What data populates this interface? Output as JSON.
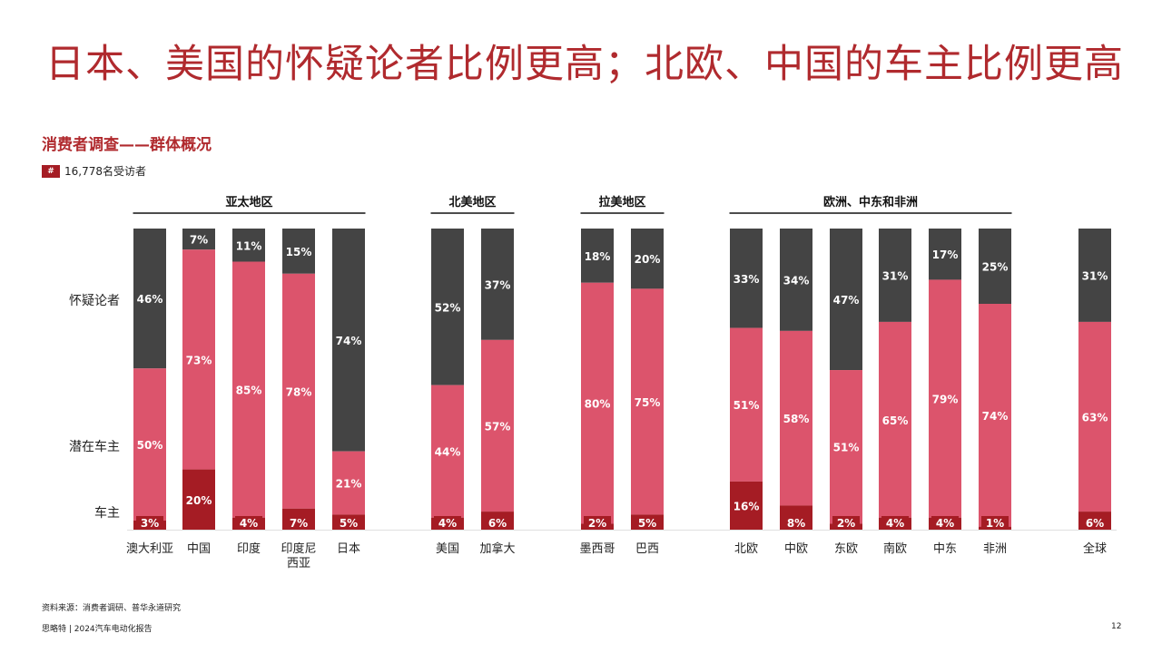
{
  "title": "日本、美国的怀疑论者比例更高；北欧、中国的车主比例更高",
  "subtitle": "消费者调查——群体概况",
  "legend": {
    "badge": "#",
    "text": "16,778名受访者"
  },
  "footer": {
    "source": "资料来源：消费者调研、普华永道研究",
    "publisher": "思略特 | 2024汽车电动化报告",
    "page": "12"
  },
  "colors": {
    "owner": "#a51c24",
    "potential": "#dc546c",
    "skeptic": "#444444"
  },
  "chart_data": {
    "type": "bar",
    "stacked": true,
    "ylim": [
      0,
      100
    ],
    "categories": [
      "澳大利亚",
      "中国",
      "印度",
      "印度尼西亚",
      "日本",
      "美国",
      "加拿大",
      "墨西哥",
      "巴西",
      "北欧",
      "中欧",
      "东欧",
      "南欧",
      "中东",
      "非洲",
      "全球"
    ],
    "series": [
      {
        "name": "车主",
        "values": [
          3,
          20,
          4,
          7,
          5,
          4,
          6,
          2,
          5,
          16,
          8,
          2,
          4,
          4,
          1,
          6
        ]
      },
      {
        "name": "潜在车主",
        "values": [
          50,
          73,
          85,
          78,
          21,
          44,
          57,
          80,
          75,
          51,
          58,
          51,
          65,
          79,
          74,
          63
        ]
      },
      {
        "name": "怀疑论者",
        "values": [
          46,
          7,
          11,
          15,
          74,
          52,
          37,
          18,
          20,
          33,
          34,
          47,
          31,
          17,
          25,
          31
        ]
      }
    ],
    "groups": [
      {
        "label": "亚太地区",
        "categories": [
          "澳大利亚",
          "中国",
          "印度",
          "印度尼西亚",
          "日本"
        ]
      },
      {
        "label": "北美地区",
        "categories": [
          "美国",
          "加拿大"
        ]
      },
      {
        "label": "拉美地区",
        "categories": [
          "墨西哥",
          "巴西"
        ]
      },
      {
        "label": "欧洲、中东和非洲",
        "categories": [
          "北欧",
          "中欧",
          "东欧",
          "南欧",
          "中东",
          "非洲"
        ]
      }
    ],
    "x_labels": [
      [
        "澳大利亚"
      ],
      [
        "中国"
      ],
      [
        "印度"
      ],
      [
        "印度尼",
        "西亚"
      ],
      [
        "日本"
      ],
      [
        "美国"
      ],
      [
        "加拿大"
      ],
      [
        "墨西哥"
      ],
      [
        "巴西"
      ],
      [
        "北欧"
      ],
      [
        "中欧"
      ],
      [
        "东欧"
      ],
      [
        "南欧"
      ],
      [
        "中东"
      ],
      [
        "非洲"
      ],
      [
        "全球"
      ]
    ],
    "row_labels": [
      "怀疑论者",
      "潜在车主",
      "车主"
    ]
  }
}
